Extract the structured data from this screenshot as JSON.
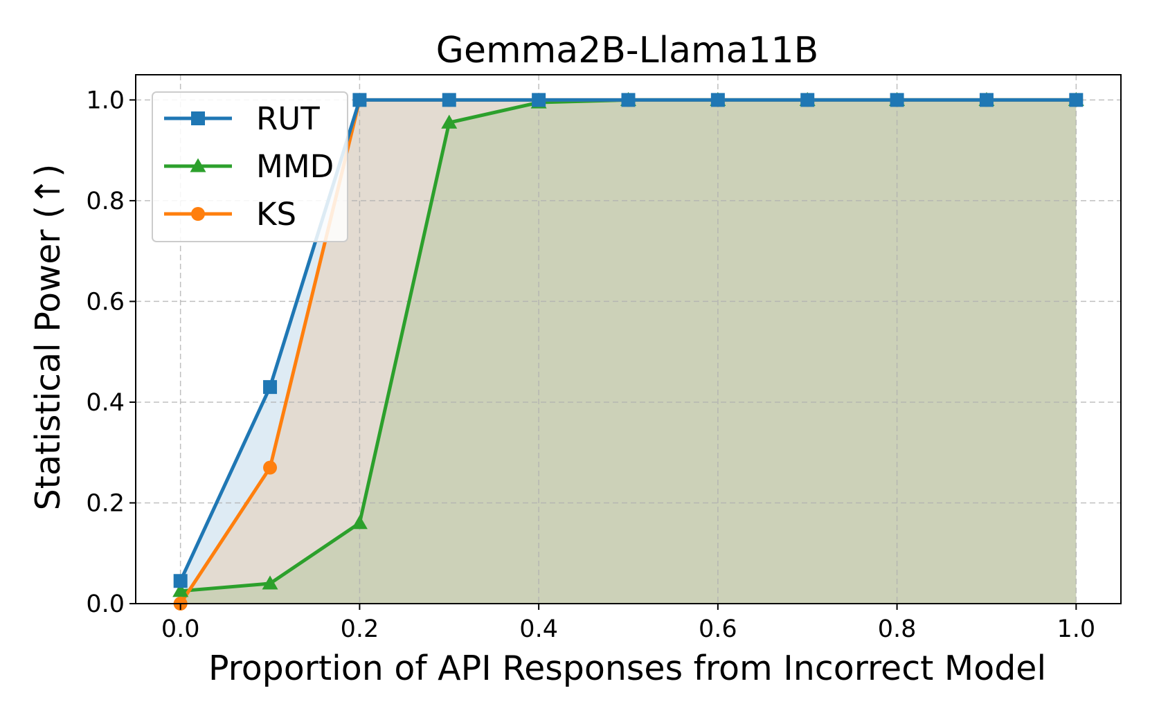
{
  "chart_data": {
    "type": "line",
    "title": "Gemma2B-Llama11B",
    "xlabel": "Proportion of API Responses from Incorrect Model",
    "ylabel": "Statistical Power (↑)",
    "x": [
      0.0,
      0.1,
      0.2,
      0.3,
      0.4,
      0.5,
      0.6,
      0.7,
      0.8,
      0.9,
      1.0
    ],
    "xlim": [
      -0.05,
      1.05
    ],
    "ylim": [
      0.0,
      1.05
    ],
    "xticks": [
      "0.0",
      "0.2",
      "0.4",
      "0.6",
      "0.8",
      "1.0"
    ],
    "yticks": [
      "0.0",
      "0.2",
      "0.4",
      "0.6",
      "0.8",
      "1.0"
    ],
    "grid": true,
    "legend_position": "top-left",
    "filled_area": true,
    "series": [
      {
        "name": "RUT",
        "color": "#1f77b4",
        "marker": "square",
        "values": [
          0.045,
          0.43,
          1.0,
          1.0,
          1.0,
          1.0,
          1.0,
          1.0,
          1.0,
          1.0,
          1.0
        ]
      },
      {
        "name": "MMD",
        "color": "#2ca02c",
        "marker": "triangle",
        "values": [
          0.025,
          0.04,
          0.16,
          0.955,
          0.995,
          1.0,
          1.0,
          1.0,
          1.0,
          1.0,
          1.0
        ]
      },
      {
        "name": "KS",
        "color": "#ff7f0e",
        "marker": "circle",
        "values": [
          0.0,
          0.27,
          1.0,
          1.0,
          1.0,
          1.0,
          1.0,
          1.0,
          1.0,
          1.0,
          1.0
        ]
      }
    ]
  }
}
